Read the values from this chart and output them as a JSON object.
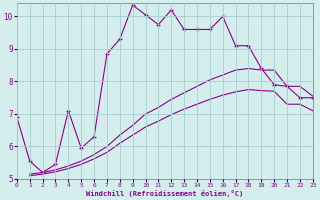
{
  "xlabel": "Windchill (Refroidissement éolien,°C)",
  "xlim": [
    0,
    23
  ],
  "ylim": [
    5,
    10.4
  ],
  "xticks": [
    0,
    1,
    2,
    3,
    4,
    5,
    6,
    7,
    8,
    9,
    10,
    11,
    12,
    13,
    14,
    15,
    16,
    17,
    18,
    19,
    20,
    21,
    22,
    23
  ],
  "yticks": [
    5,
    6,
    7,
    8,
    9,
    10
  ],
  "background_color": "#d4eeee",
  "grid_color": "#aacccc",
  "line_color": "#880088",
  "series1_x": [
    0,
    1,
    2,
    3,
    4,
    5,
    6,
    7,
    8,
    9,
    10,
    11,
    12,
    13,
    14,
    15,
    16,
    17,
    18,
    19,
    20,
    21,
    22,
    23
  ],
  "series1_y": [
    6.9,
    5.55,
    5.2,
    5.45,
    7.1,
    5.95,
    6.3,
    8.85,
    9.3,
    10.35,
    10.05,
    9.75,
    10.2,
    9.6,
    9.6,
    9.6,
    10.0,
    9.1,
    9.1,
    8.4,
    7.9,
    7.85,
    7.5,
    7.5
  ],
  "series2_x": [
    1,
    2,
    3,
    4,
    5,
    6,
    7,
    8,
    9,
    10,
    11,
    12,
    13,
    14,
    15,
    16,
    17,
    18,
    19,
    20,
    21,
    22,
    23
  ],
  "series2_y": [
    5.15,
    5.2,
    5.28,
    5.4,
    5.55,
    5.75,
    6.0,
    6.35,
    6.65,
    7.0,
    7.2,
    7.45,
    7.65,
    7.85,
    8.05,
    8.2,
    8.35,
    8.4,
    8.35,
    8.35,
    7.85,
    7.85,
    7.55
  ],
  "series3_x": [
    1,
    2,
    3,
    4,
    5,
    6,
    7,
    8,
    9,
    10,
    11,
    12,
    13,
    14,
    15,
    16,
    17,
    18,
    19,
    20,
    21,
    22,
    23
  ],
  "series3_y": [
    5.1,
    5.15,
    5.22,
    5.32,
    5.45,
    5.62,
    5.82,
    6.1,
    6.35,
    6.6,
    6.78,
    6.98,
    7.15,
    7.3,
    7.45,
    7.58,
    7.68,
    7.75,
    7.72,
    7.7,
    7.3,
    7.3,
    7.1
  ]
}
